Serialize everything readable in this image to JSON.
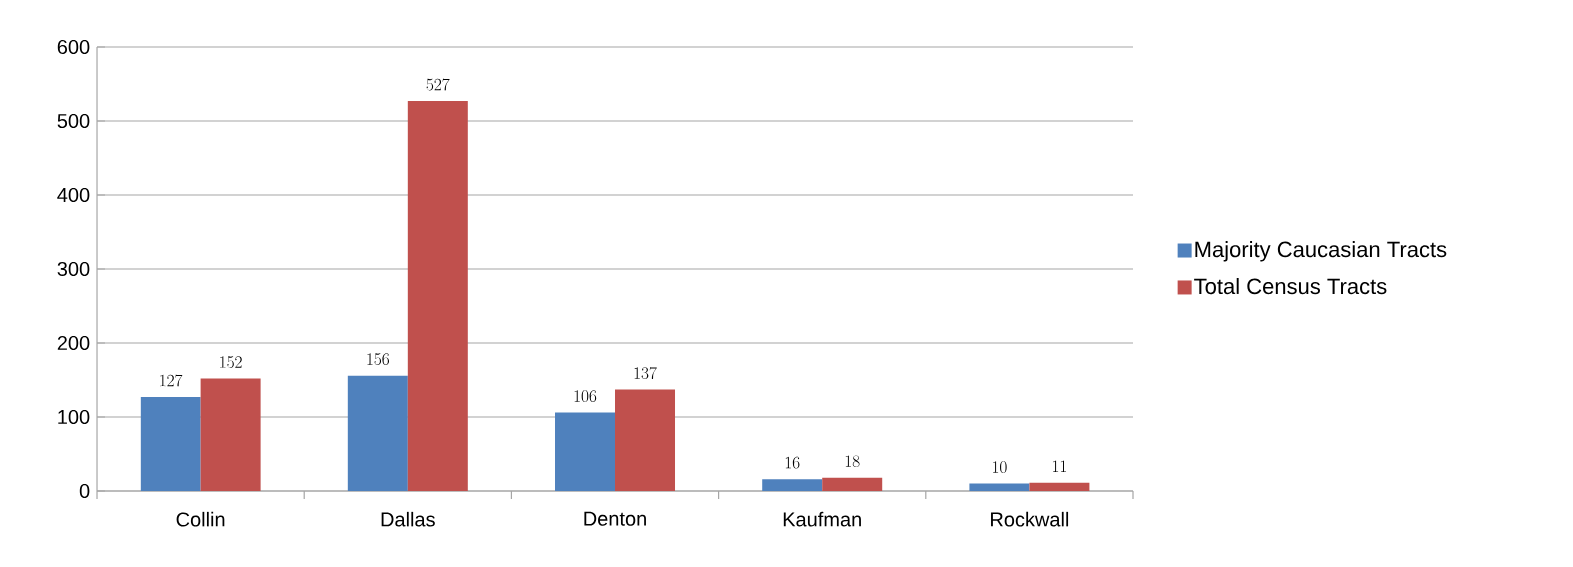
{
  "chart_data": {
    "type": "bar",
    "categories": [
      "Collin",
      "Dallas",
      "Denton",
      "Kaufman",
      "Rockwall"
    ],
    "series": [
      {
        "name": "Majority Caucasian Tracts",
        "color": "#4f81bd",
        "values": [
          127,
          156,
          106,
          16,
          10
        ]
      },
      {
        "name": "Total Census Tracts",
        "color": "#c0504d",
        "values": [
          152,
          527,
          137,
          18,
          11
        ]
      }
    ],
    "ylim": [
      0,
      600
    ],
    "yticks": [
      0,
      100,
      200,
      300,
      400,
      500,
      600
    ],
    "grid": "y",
    "legend": "right",
    "data_labels": true
  }
}
